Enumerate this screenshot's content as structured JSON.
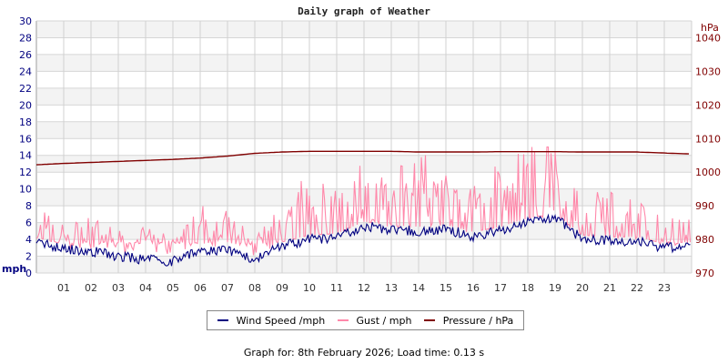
{
  "chart_data": {
    "type": "line",
    "title": "Daily graph of Weather",
    "xlabel": "",
    "ylabel": "mph",
    "ylabel_right": "hPa",
    "ylim": [
      0,
      30
    ],
    "ylim_right": [
      970,
      1045
    ],
    "yticks": [
      0,
      2,
      4,
      6,
      8,
      10,
      12,
      14,
      16,
      18,
      20,
      22,
      24,
      26,
      28,
      30
    ],
    "yticks_right": [
      970,
      980,
      990,
      1000,
      1010,
      1020,
      1030,
      1040
    ],
    "x_ticks": [
      "01",
      "02",
      "03",
      "04",
      "05",
      "06",
      "07",
      "08",
      "09",
      "10",
      "11",
      "12",
      "13",
      "14",
      "15",
      "16",
      "17",
      "18",
      "19",
      "20",
      "21",
      "22",
      "23"
    ],
    "grid": true,
    "legend_position": "bottom",
    "x_hours": [
      0,
      1,
      2,
      3,
      4,
      5,
      6,
      7,
      8,
      9,
      10,
      11,
      12,
      13,
      14,
      15,
      16,
      17,
      18,
      19,
      20,
      21,
      22,
      23,
      24
    ],
    "series": [
      {
        "name": "Wind Speed /mph",
        "color": "#000080",
        "axis": "left",
        "values": [
          3.8,
          2.8,
          2.6,
          2.0,
          1.6,
          1.4,
          2.6,
          2.8,
          1.6,
          3.2,
          4.0,
          4.2,
          5.6,
          5.2,
          5.0,
          5.2,
          4.4,
          5.0,
          6.0,
          6.6,
          4.0,
          3.8,
          3.8,
          3.0,
          3.0
        ]
      },
      {
        "name": "Gust / mph",
        "color": "#ff88aa",
        "axis": "left",
        "values": [
          5.5,
          4.0,
          4.5,
          3.5,
          4.0,
          3.0,
          5.5,
          5.0,
          3.0,
          6.0,
          8.0,
          7.0,
          9.0,
          8.0,
          10.0,
          8.5,
          7.0,
          9.0,
          10.0,
          11.0,
          7.0,
          6.5,
          6.0,
          5.0,
          4.5
        ]
      },
      {
        "name": "Pressure / hPa",
        "color": "#800000",
        "axis": "right",
        "values": [
          1002.2,
          1002.6,
          1002.9,
          1003.2,
          1003.5,
          1003.8,
          1004.2,
          1004.8,
          1005.6,
          1006.0,
          1006.2,
          1006.2,
          1006.2,
          1006.2,
          1006.0,
          1006.0,
          1006.0,
          1006.1,
          1006.1,
          1006.1,
          1006.0,
          1006.0,
          1006.0,
          1005.7,
          1005.4
        ]
      }
    ]
  },
  "header": {
    "title": "Daily graph of Weather"
  },
  "axes": {
    "left_unit": "mph",
    "right_unit": "hPa"
  },
  "legend": {
    "items": [
      {
        "label": "Wind Speed /mph",
        "color": "#000080"
      },
      {
        "label": "Gust / mph",
        "color": "#ff88aa"
      },
      {
        "label": "Pressure / hPa",
        "color": "#800000"
      }
    ]
  },
  "footer": {
    "text": "Graph for: 8th February 2026; Load time: 0.13 s"
  }
}
